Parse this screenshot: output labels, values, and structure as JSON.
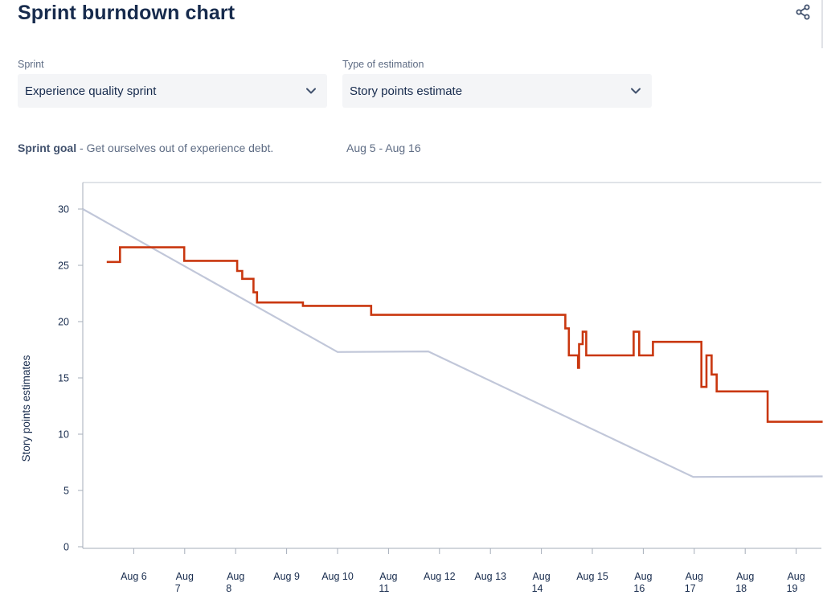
{
  "header": {
    "title": "Sprint burndown chart",
    "share_icon": "share-icon"
  },
  "filters": {
    "sprint": {
      "label": "Sprint",
      "value": "Experience quality sprint",
      "icon": "chevron-down-icon"
    },
    "estimation": {
      "label": "Type of estimation",
      "value": "Story points estimate",
      "icon": "chevron-down-icon"
    }
  },
  "goal": {
    "label": "Sprint goal",
    "separator": " - ",
    "text": "Get ourselves out of experience debt.",
    "dates": "Aug 5 - Aug 16"
  },
  "colors": {
    "remaining": "#C9370F",
    "guideline": "#C1C7D9",
    "axis": "#A5ADBA",
    "text": "#172B4D"
  },
  "chart_data": {
    "type": "line",
    "ylabel": "Story points estimates",
    "xlabel": "",
    "ylim": [
      0,
      31.5
    ],
    "yticks": [
      0,
      5,
      10,
      15,
      20,
      25,
      30
    ],
    "xlim": [
      5.0,
      19.52
    ],
    "xticks": [
      {
        "x": 6,
        "lines": [
          "Aug 6"
        ]
      },
      {
        "x": 7,
        "lines": [
          "Aug",
          "7"
        ]
      },
      {
        "x": 8,
        "lines": [
          "Aug",
          "8"
        ]
      },
      {
        "x": 9,
        "lines": [
          "Aug 9"
        ]
      },
      {
        "x": 10,
        "lines": [
          "Aug 10"
        ]
      },
      {
        "x": 11,
        "lines": [
          "Aug",
          "11"
        ]
      },
      {
        "x": 12,
        "lines": [
          "Aug 12"
        ]
      },
      {
        "x": 13,
        "lines": [
          "Aug 13"
        ]
      },
      {
        "x": 14,
        "lines": [
          "Aug",
          "14"
        ]
      },
      {
        "x": 15,
        "lines": [
          "Aug 15"
        ]
      },
      {
        "x": 16,
        "lines": [
          "Aug",
          "16"
        ]
      },
      {
        "x": 17,
        "lines": [
          "Aug",
          "17"
        ]
      },
      {
        "x": 18,
        "lines": [
          "Aug",
          "18"
        ]
      },
      {
        "x": 19,
        "lines": [
          "Aug",
          "19"
        ]
      }
    ],
    "series": [
      {
        "role": "guideline",
        "points": [
          [
            5.0,
            30.0
          ],
          [
            10.0,
            17.3
          ],
          [
            11.78,
            17.35
          ],
          [
            16.98,
            6.2
          ],
          [
            19.52,
            6.25
          ]
        ]
      },
      {
        "role": "remaining",
        "points": [
          [
            5.47,
            25.3
          ],
          [
            5.73,
            25.3
          ],
          [
            5.73,
            26.6
          ],
          [
            6.99,
            26.6
          ],
          [
            6.99,
            25.4
          ],
          [
            8.03,
            25.4
          ],
          [
            8.03,
            24.5
          ],
          [
            8.13,
            24.5
          ],
          [
            8.13,
            23.8
          ],
          [
            8.35,
            23.8
          ],
          [
            8.35,
            22.6
          ],
          [
            8.42,
            22.6
          ],
          [
            8.42,
            21.7
          ],
          [
            9.32,
            21.7
          ],
          [
            9.32,
            21.4
          ],
          [
            10.66,
            21.4
          ],
          [
            10.66,
            20.6
          ],
          [
            14.47,
            20.6
          ],
          [
            14.47,
            19.4
          ],
          [
            14.54,
            19.4
          ],
          [
            14.54,
            17.0
          ],
          [
            14.72,
            17.0
          ],
          [
            14.72,
            15.9
          ],
          [
            14.74,
            15.9
          ],
          [
            14.74,
            18.0
          ],
          [
            14.81,
            18.0
          ],
          [
            14.81,
            19.1
          ],
          [
            14.88,
            19.1
          ],
          [
            14.88,
            17.0
          ],
          [
            15.81,
            17.0
          ],
          [
            15.81,
            19.1
          ],
          [
            15.92,
            19.1
          ],
          [
            15.92,
            17.0
          ],
          [
            16.19,
            17.0
          ],
          [
            16.19,
            18.2
          ],
          [
            17.14,
            18.2
          ],
          [
            17.14,
            14.2
          ],
          [
            17.24,
            14.2
          ],
          [
            17.24,
            17.0
          ],
          [
            17.34,
            17.0
          ],
          [
            17.34,
            15.3
          ],
          [
            17.44,
            15.3
          ],
          [
            17.44,
            13.8
          ],
          [
            18.44,
            13.8
          ],
          [
            18.44,
            11.1
          ],
          [
            19.52,
            11.1
          ]
        ]
      }
    ]
  }
}
